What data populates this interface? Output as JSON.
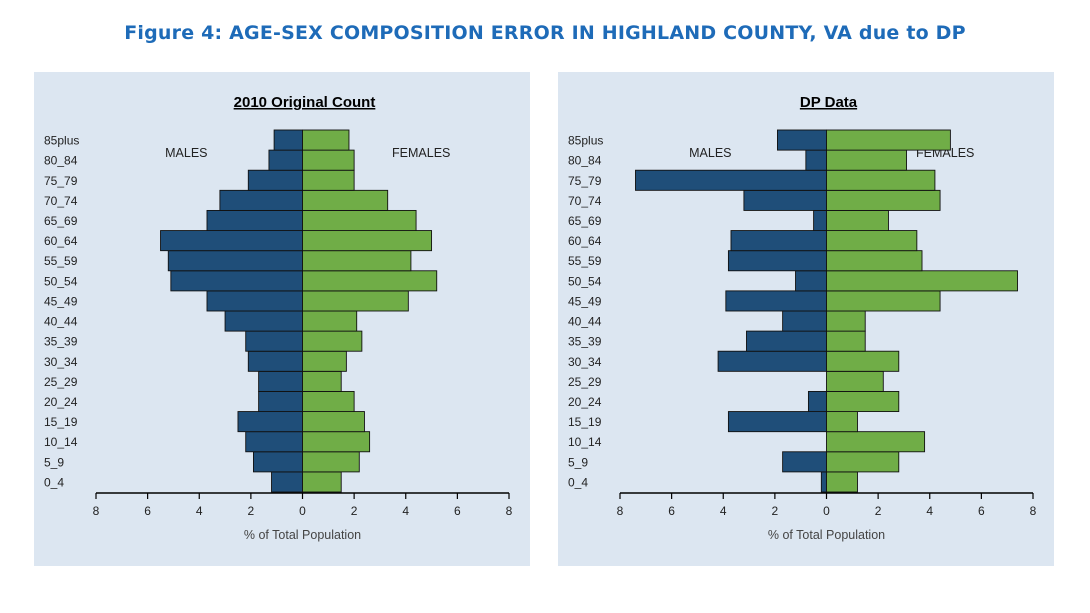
{
  "figure_title": "Figure 4: AGE-SEX COMPOSITION ERROR IN HIGHLAND COUNTY, VA due to DP",
  "colors": {
    "males": "#1f4e79",
    "females": "#70ad47",
    "panel_bg": "#dce6f1",
    "title": "#1e6bb8"
  },
  "chart_data": [
    {
      "type": "bar",
      "orientation": "horizontal-population-pyramid",
      "title": "2010 Original Count",
      "xlabel": "% of Total Population",
      "ylabel": "",
      "categories": [
        "0_4",
        "5_9",
        "10_14",
        "15_19",
        "20_24",
        "25_29",
        "30_34",
        "35_39",
        "40_44",
        "45_49",
        "50_54",
        "55_59",
        "60_64",
        "65_69",
        "70_74",
        "75_79",
        "80_84",
        "85plus"
      ],
      "xlim": [
        -8,
        8
      ],
      "xticks": [
        -8,
        -6,
        -4,
        -2,
        0,
        2,
        4,
        6,
        8
      ],
      "xtick_labels": [
        "8",
        "6",
        "4",
        "2",
        "0",
        "2",
        "4",
        "6",
        "8"
      ],
      "series": [
        {
          "name": "MALES",
          "values": [
            -1.2,
            -1.9,
            -2.2,
            -2.5,
            -1.7,
            -1.7,
            -2.1,
            -2.2,
            -3.0,
            -3.7,
            -5.1,
            -5.2,
            -5.5,
            -3.7,
            -3.2,
            -2.1,
            -1.3,
            -1.1
          ]
        },
        {
          "name": "FEMALES",
          "values": [
            1.5,
            2.2,
            2.6,
            2.4,
            2.0,
            1.5,
            1.7,
            2.3,
            2.1,
            4.1,
            5.2,
            4.2,
            5.0,
            4.4,
            3.3,
            2.0,
            2.0,
            1.8
          ]
        }
      ]
    },
    {
      "type": "bar",
      "orientation": "horizontal-population-pyramid",
      "title": "DP Data",
      "xlabel": "% of Total Population",
      "ylabel": "",
      "categories": [
        "0_4",
        "5_9",
        "10_14",
        "15_19",
        "20_24",
        "25_29",
        "30_34",
        "35_39",
        "40_44",
        "45_49",
        "50_54",
        "55_59",
        "60_64",
        "65_69",
        "70_74",
        "75_79",
        "80_84",
        "85plus"
      ],
      "xlim": [
        -8,
        8
      ],
      "xticks": [
        -8,
        -6,
        -4,
        -2,
        0,
        2,
        4,
        6,
        8
      ],
      "xtick_labels": [
        "8",
        "6",
        "4",
        "2",
        "0",
        "2",
        "4",
        "6",
        "8"
      ],
      "series": [
        {
          "name": "MALES",
          "values": [
            -0.2,
            -1.7,
            0,
            -3.8,
            -0.7,
            0,
            -4.2,
            -3.1,
            -1.7,
            -3.9,
            -1.2,
            -3.8,
            -3.7,
            -0.5,
            -3.2,
            -7.4,
            -0.8,
            -1.9
          ]
        },
        {
          "name": "FEMALES",
          "values": [
            1.2,
            2.8,
            3.8,
            1.2,
            2.8,
            2.2,
            2.8,
            1.5,
            1.5,
            4.4,
            7.4,
            3.7,
            3.5,
            2.4,
            4.4,
            4.2,
            3.1,
            4.8
          ]
        }
      ]
    }
  ]
}
